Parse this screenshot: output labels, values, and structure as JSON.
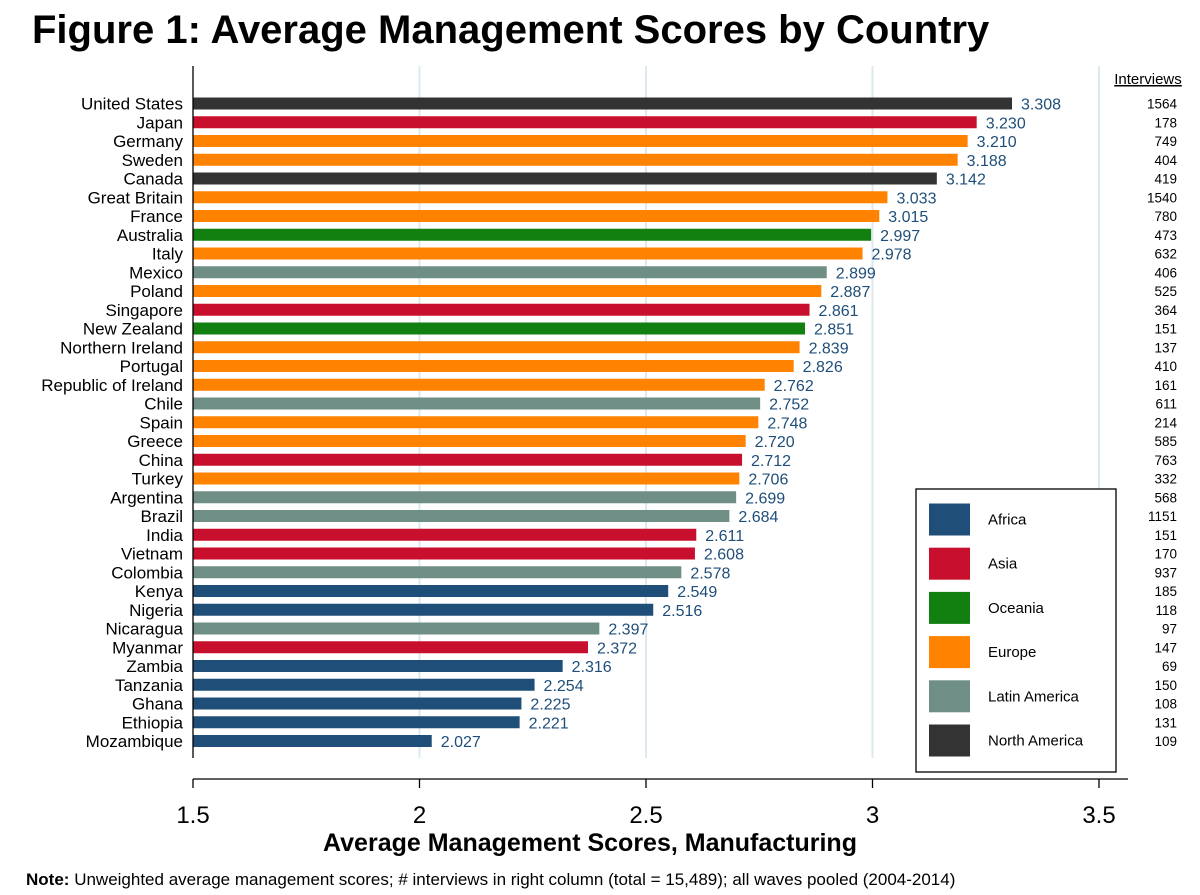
{
  "chart_data": {
    "type": "bar",
    "orientation": "horizontal",
    "title": "Figure 1: Average Management Scores by Country",
    "xlabel": "Average Management Scores, Manufacturing",
    "xlim": [
      1.5,
      3.5
    ],
    "xticks": [
      "1.5",
      "2",
      "2.5",
      "3",
      "3.5"
    ],
    "xtick_values": [
      1.5,
      2,
      2.5,
      3,
      3.5
    ],
    "interviews_header": "Interviews",
    "legend_position": "bottom-right",
    "regions": [
      {
        "name": "Africa",
        "color": "#1f4e79"
      },
      {
        "name": "Asia",
        "color": "#c8102e"
      },
      {
        "name": "Oceania",
        "color": "#118011"
      },
      {
        "name": "Europe",
        "color": "#ff8200"
      },
      {
        "name": "Latin America",
        "color": "#6f8f86"
      },
      {
        "name": "North America",
        "color": "#333333"
      }
    ],
    "bars": [
      {
        "country": "United States",
        "value": 3.308,
        "label": "3.308",
        "region": "North America",
        "interviews": "1564"
      },
      {
        "country": "Japan",
        "value": 3.23,
        "label": "3.230",
        "region": "Asia",
        "interviews": "178"
      },
      {
        "country": "Germany",
        "value": 3.21,
        "label": "3.210",
        "region": "Europe",
        "interviews": "749"
      },
      {
        "country": "Sweden",
        "value": 3.188,
        "label": "3.188",
        "region": "Europe",
        "interviews": "404"
      },
      {
        "country": "Canada",
        "value": 3.142,
        "label": "3.142",
        "region": "North America",
        "interviews": "419"
      },
      {
        "country": "Great Britain",
        "value": 3.033,
        "label": "3.033",
        "region": "Europe",
        "interviews": "1540"
      },
      {
        "country": "France",
        "value": 3.015,
        "label": "3.015",
        "region": "Europe",
        "interviews": "780"
      },
      {
        "country": "Australia",
        "value": 2.997,
        "label": "2.997",
        "region": "Oceania",
        "interviews": "473"
      },
      {
        "country": "Italy",
        "value": 2.978,
        "label": "2.978",
        "region": "Europe",
        "interviews": "632"
      },
      {
        "country": "Mexico",
        "value": 2.899,
        "label": "2.899",
        "region": "Latin America",
        "interviews": "406"
      },
      {
        "country": "Poland",
        "value": 2.887,
        "label": "2.887",
        "region": "Europe",
        "interviews": "525"
      },
      {
        "country": "Singapore",
        "value": 2.861,
        "label": "2.861",
        "region": "Asia",
        "interviews": "364"
      },
      {
        "country": "New Zealand",
        "value": 2.851,
        "label": "2.851",
        "region": "Oceania",
        "interviews": "151"
      },
      {
        "country": "Northern Ireland",
        "value": 2.839,
        "label": "2.839",
        "region": "Europe",
        "interviews": "137"
      },
      {
        "country": "Portugal",
        "value": 2.826,
        "label": "2.826",
        "region": "Europe",
        "interviews": "410"
      },
      {
        "country": "Republic of Ireland",
        "value": 2.762,
        "label": "2.762",
        "region": "Europe",
        "interviews": "161"
      },
      {
        "country": "Chile",
        "value": 2.752,
        "label": "2.752",
        "region": "Latin America",
        "interviews": "611"
      },
      {
        "country": "Spain",
        "value": 2.748,
        "label": "2.748",
        "region": "Europe",
        "interviews": "214"
      },
      {
        "country": "Greece",
        "value": 2.72,
        "label": "2.720",
        "region": "Europe",
        "interviews": "585"
      },
      {
        "country": "China",
        "value": 2.712,
        "label": "2.712",
        "region": "Asia",
        "interviews": "763"
      },
      {
        "country": "Turkey",
        "value": 2.706,
        "label": "2.706",
        "region": "Europe",
        "interviews": "332"
      },
      {
        "country": "Argentina",
        "value": 2.699,
        "label": "2.699",
        "region": "Latin America",
        "interviews": "568"
      },
      {
        "country": "Brazil",
        "value": 2.684,
        "label": "2.684",
        "region": "Latin America",
        "interviews": "1151"
      },
      {
        "country": "India",
        "value": 2.611,
        "label": "2.611",
        "region": "Asia",
        "interviews": "151"
      },
      {
        "country": "Vietnam",
        "value": 2.608,
        "label": "2.608",
        "region": "Asia",
        "interviews": "170"
      },
      {
        "country": "Colombia",
        "value": 2.578,
        "label": "2.578",
        "region": "Latin America",
        "interviews": "937"
      },
      {
        "country": "Kenya",
        "value": 2.549,
        "label": "2.549",
        "region": "Africa",
        "interviews": "185"
      },
      {
        "country": "Nigeria",
        "value": 2.516,
        "label": "2.516",
        "region": "Africa",
        "interviews": "118"
      },
      {
        "country": "Nicaragua",
        "value": 2.397,
        "label": "2.397",
        "region": "Latin America",
        "interviews": "97"
      },
      {
        "country": "Myanmar",
        "value": 2.372,
        "label": "2.372",
        "region": "Asia",
        "interviews": "147"
      },
      {
        "country": "Zambia",
        "value": 2.316,
        "label": "2.316",
        "region": "Africa",
        "interviews": "69"
      },
      {
        "country": "Tanzania",
        "value": 2.254,
        "label": "2.254",
        "region": "Africa",
        "interviews": "150"
      },
      {
        "country": "Ghana",
        "value": 2.225,
        "label": "2.225",
        "region": "Africa",
        "interviews": "108"
      },
      {
        "country": "Ethiopia",
        "value": 2.221,
        "label": "2.221",
        "region": "Africa",
        "interviews": "131"
      },
      {
        "country": "Mozambique",
        "value": 2.027,
        "label": "2.027",
        "region": "Africa",
        "interviews": "109"
      }
    ],
    "note_label": "Note:",
    "note_text": "Unweighted average management scores; # interviews in right column (total = 15,489); all waves pooled (2004-2014)"
  }
}
